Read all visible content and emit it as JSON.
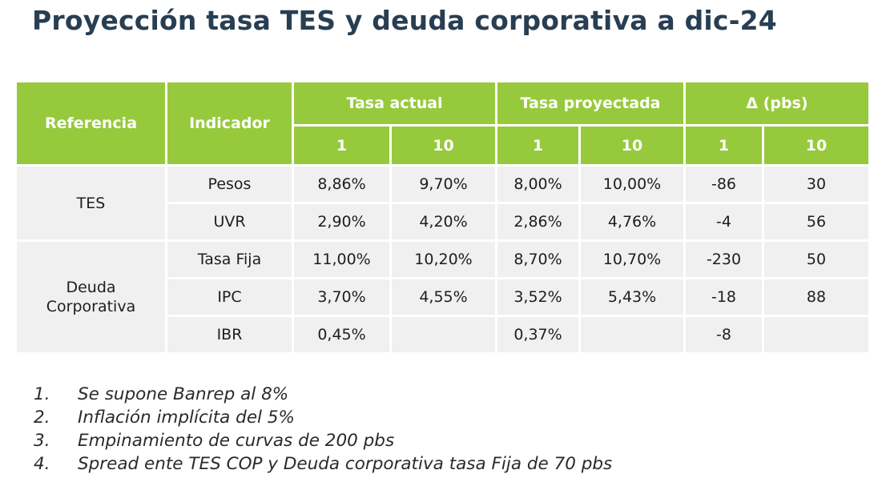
{
  "title": "Proyección tasa TES y deuda corporativa a dic-24",
  "table": {
    "headers": {
      "referencia": "Referencia",
      "indicador": "Indicador",
      "tasa_actual": "Tasa actual",
      "tasa_proyectada": "Tasa proyectada",
      "delta": "Δ (pbs)",
      "sub": [
        "1",
        "10",
        "1",
        "10",
        "1",
        "10"
      ]
    },
    "groups": [
      {
        "referencia": "TES",
        "rows": [
          {
            "indicador": "Pesos",
            "ta1": "8,86%",
            "ta10": "9,70%",
            "tp1": "8,00%",
            "tp10": "10,00%",
            "d1": "-86",
            "d10": "30"
          },
          {
            "indicador": "UVR",
            "ta1": "2,90%",
            "ta10": "4,20%",
            "tp1": "2,86%",
            "tp10": "4,76%",
            "d1": "-4",
            "d10": "56"
          }
        ]
      },
      {
        "referencia_line1": "Deuda",
        "referencia_line2": "Corporativa",
        "rows": [
          {
            "indicador": "Tasa Fija",
            "ta1": "11,00%",
            "ta10": "10,20%",
            "tp1": "8,70%",
            "tp10": "10,70%",
            "d1": "-230",
            "d10": "50"
          },
          {
            "indicador": "IPC",
            "ta1": "3,70%",
            "ta10": "4,55%",
            "tp1": "3,52%",
            "tp10": "5,43%",
            "d1": "-18",
            "d10": "88"
          },
          {
            "indicador": "IBR",
            "ta1": "0,45%",
            "ta10": "",
            "tp1": "0,37%",
            "tp10": "",
            "d1": "-8",
            "d10": ""
          }
        ]
      }
    ]
  },
  "notes": [
    {
      "num": "1.",
      "text": "Se supone Banrep al 8%"
    },
    {
      "num": "2.",
      "text": "Inflación implícita del 5%"
    },
    {
      "num": "3.",
      "text": "Empinamiento de curvas de 200 pbs"
    },
    {
      "num": "4.",
      "text": "Spread ente TES COP y Deuda corporativa tasa Fija de 70 pbs"
    }
  ]
}
